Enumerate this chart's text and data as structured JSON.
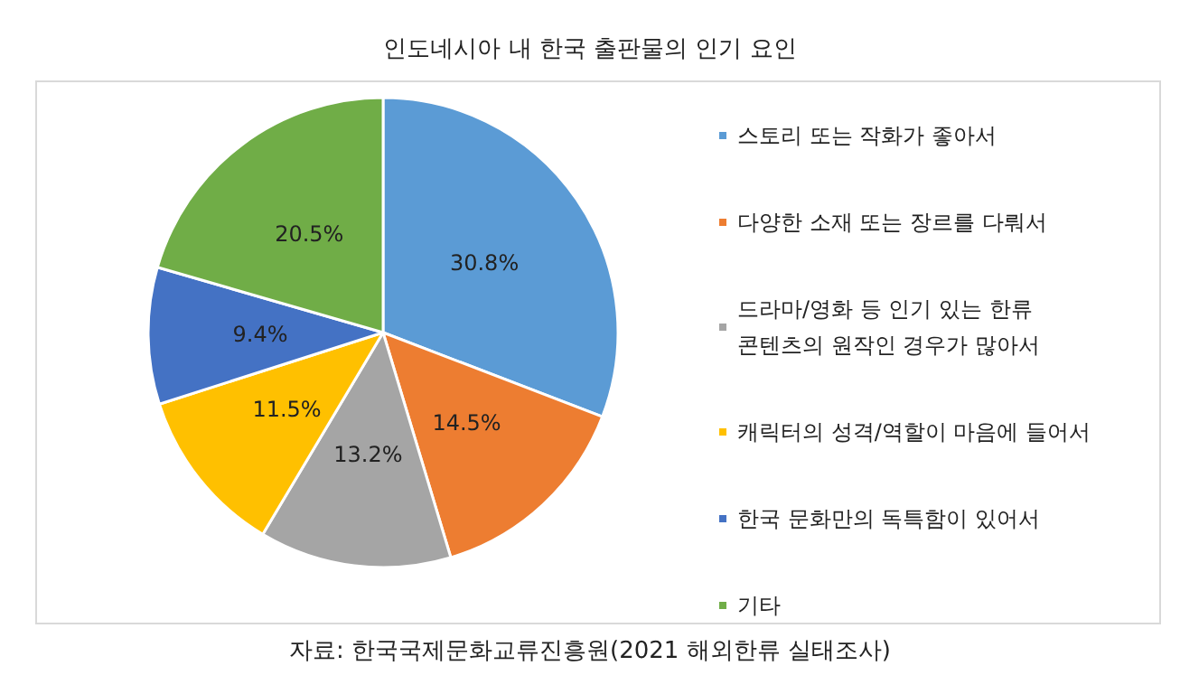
{
  "chart_data": {
    "type": "pie",
    "title": "인도네시아 내 한국 출판물의 인기 요인",
    "categories": [
      "스토리 또는 작화가 좋아서",
      "다양한 소재 또는 장르를 다뤄서",
      "드라마/영화 등 인기 있는 한류\n콘텐츠의 원작인 경우가 많아서",
      "캐릭터의 성격/역할이 마음에 들어서",
      "한국 문화만의 독특함이 있어서",
      "기타"
    ],
    "values": [
      30.8,
      14.5,
      13.2,
      11.5,
      9.4,
      20.5
    ],
    "value_labels": [
      "30.8%",
      "14.5%",
      "13.2%",
      "11.5%",
      "9.4%",
      "20.5%"
    ],
    "colors": [
      "#5b9bd5",
      "#ed7d31",
      "#a5a5a5",
      "#ffc000",
      "#4472c4",
      "#70ad47"
    ],
    "legend": "right",
    "annotations": [
      "자료: 한국국제문화교류진흥원(2021 해외한류 실태조사)"
    ]
  }
}
